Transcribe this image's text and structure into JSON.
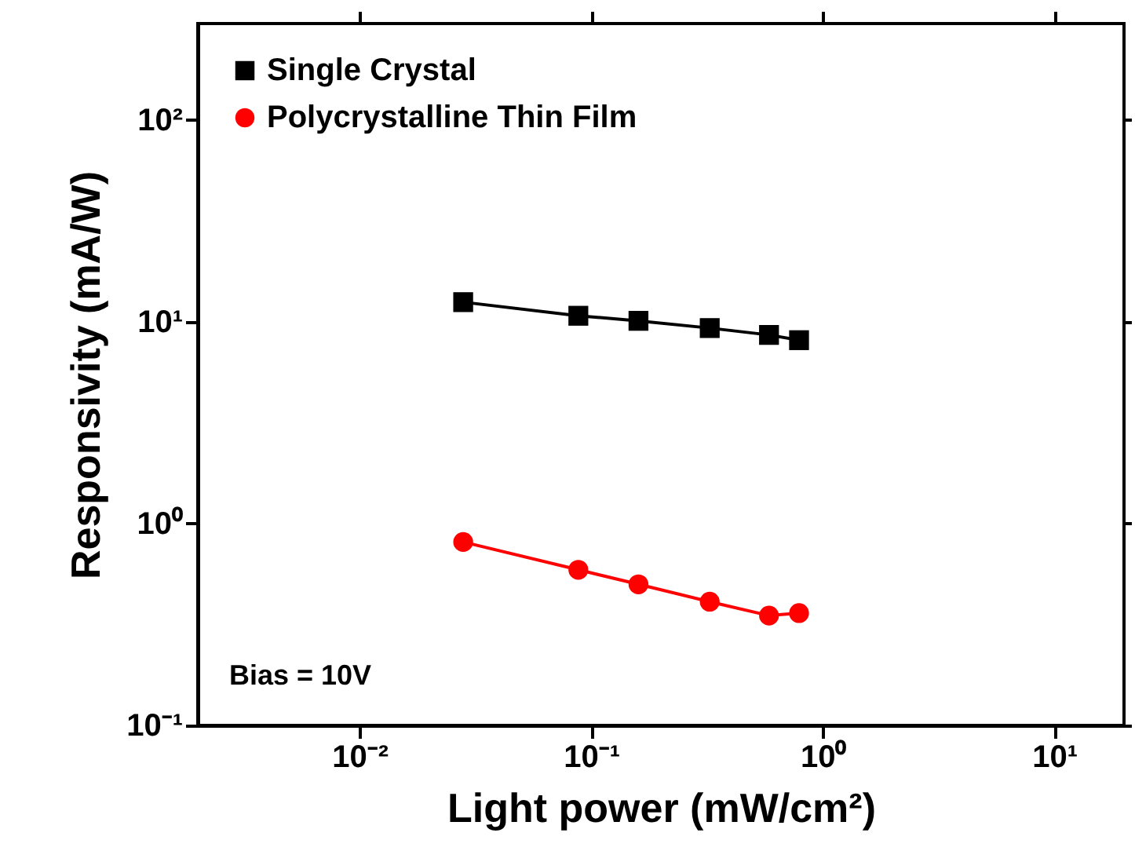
{
  "chart_data": {
    "type": "line",
    "xlabel": "Light power (mW/cm²)",
    "ylabel": "Responsivity (mA/W)",
    "log": "xy",
    "xlim": [
      0.002,
      20
    ],
    "ylim": [
      0.1,
      300
    ],
    "xticks": [
      {
        "value": 0.01,
        "label": "10⁻²"
      },
      {
        "value": 0.1,
        "label": "10⁻¹"
      },
      {
        "value": 1,
        "label": "10⁰"
      },
      {
        "value": 10,
        "label": "10¹"
      }
    ],
    "yticks": [
      {
        "value": 0.1,
        "label": "10⁻¹"
      },
      {
        "value": 1,
        "label": "10⁰"
      },
      {
        "value": 10,
        "label": "10¹"
      },
      {
        "value": 100,
        "label": "10²"
      }
    ],
    "x": [
      0.028,
      0.088,
      0.16,
      0.325,
      0.586,
      0.79
    ],
    "series": [
      {
        "name": "Single Crystal",
        "color": "#000000",
        "marker": "square",
        "values": [
          12.5,
          10.7,
          10.1,
          9.3,
          8.6,
          8.1
        ]
      },
      {
        "name": "Polycrystalline Thin Film",
        "color": "#ff0000",
        "marker": "circle",
        "values": [
          0.81,
          0.59,
          0.5,
          0.41,
          0.35,
          0.36
        ]
      }
    ],
    "legend": "top left",
    "grid": false,
    "line_style": "solid",
    "annotations": [
      "Bias = 10V"
    ]
  }
}
